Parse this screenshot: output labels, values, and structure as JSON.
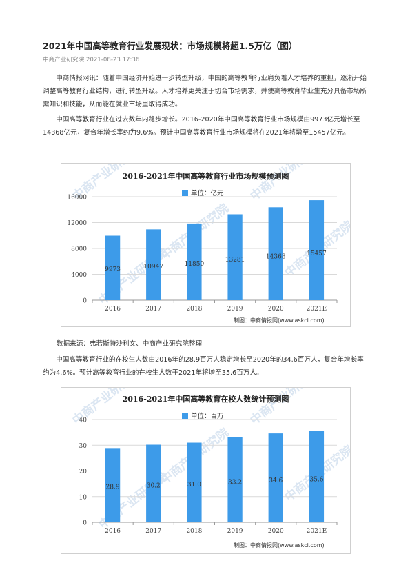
{
  "article": {
    "title": "2021年中国高等教育行业发展现状：市场规模将超1.5万亿（图）",
    "source": "中商产业研究院",
    "date": "2021-08-23 17:36",
    "paragraphs": [
      "中商情报网讯：随着中国经济开始进一步转型升级，中国的高等教育行业肩负着人才培养的重担，逐渐开始调整高等教育行业结构，进行转型升级。人才培养更关注于切合市场需求，并使高等教育毕业生充分具备市场所需知识和技能，从而能在就业市场里取得成功。",
      "中国高等教育行业在过去数年内稳步增长。2016-2020年中国高等教育行业市场规模由9973亿元增长至14368亿元，复合年增长率约为9.6%。预计中国高等教育行业市场规模将在2021年将增至15457亿元。",
      "中国高等教育行业的在校生人数由2016年的28.9百万人稳定增长至2020年的34.6百万人，复合年增长率约为4.6%。预计高等教育行业的在校生人数于2021年将增至35.6百万人。"
    ],
    "data_source": "数据来源：弗若斯特沙利文、中商产业研究院整理"
  },
  "colors": {
    "bar": "#3d9be9",
    "grid": "#d9d9d9",
    "watermark": "#dbe6f2"
  },
  "chart_data": [
    {
      "type": "bar",
      "title": "2016-2021年中国高等教育行业市场规模预测图",
      "legend": "单位：亿元",
      "legend_position": "top",
      "categories": [
        "2016",
        "2017",
        "2018",
        "2019",
        "2020",
        "2021E"
      ],
      "values": [
        9973,
        10947,
        11850,
        13281,
        14368,
        15457
      ],
      "labels": [
        "9973",
        "10947",
        "11850",
        "13281",
        "14368",
        "15457"
      ],
      "ylim": [
        0,
        16000
      ],
      "yticks": [
        "0",
        "4000",
        "8000",
        "12000",
        "16000"
      ],
      "grid": true,
      "credit": "制图：中商情报网(www.askci.com)",
      "watermark": "中商产业研究院"
    },
    {
      "type": "bar",
      "title": "2016-2021年中国高等教育在校人数统计预测图",
      "legend": "单位：百万",
      "legend_position": "top",
      "categories": [
        "2016",
        "2017",
        "2018",
        "2019",
        "2020",
        "2021E"
      ],
      "values": [
        28.9,
        30.2,
        31.0,
        33.2,
        34.6,
        35.6
      ],
      "labels": [
        "28.9",
        "30.2",
        "31.0",
        "33.2",
        "34.6",
        "35.6"
      ],
      "ylim": [
        0,
        40
      ],
      "yticks": [
        "0",
        "10",
        "20",
        "30",
        "40"
      ],
      "grid": true,
      "credit": "制图：中商情报网(www.askci.com)",
      "watermark": "中商产业研究院"
    }
  ]
}
